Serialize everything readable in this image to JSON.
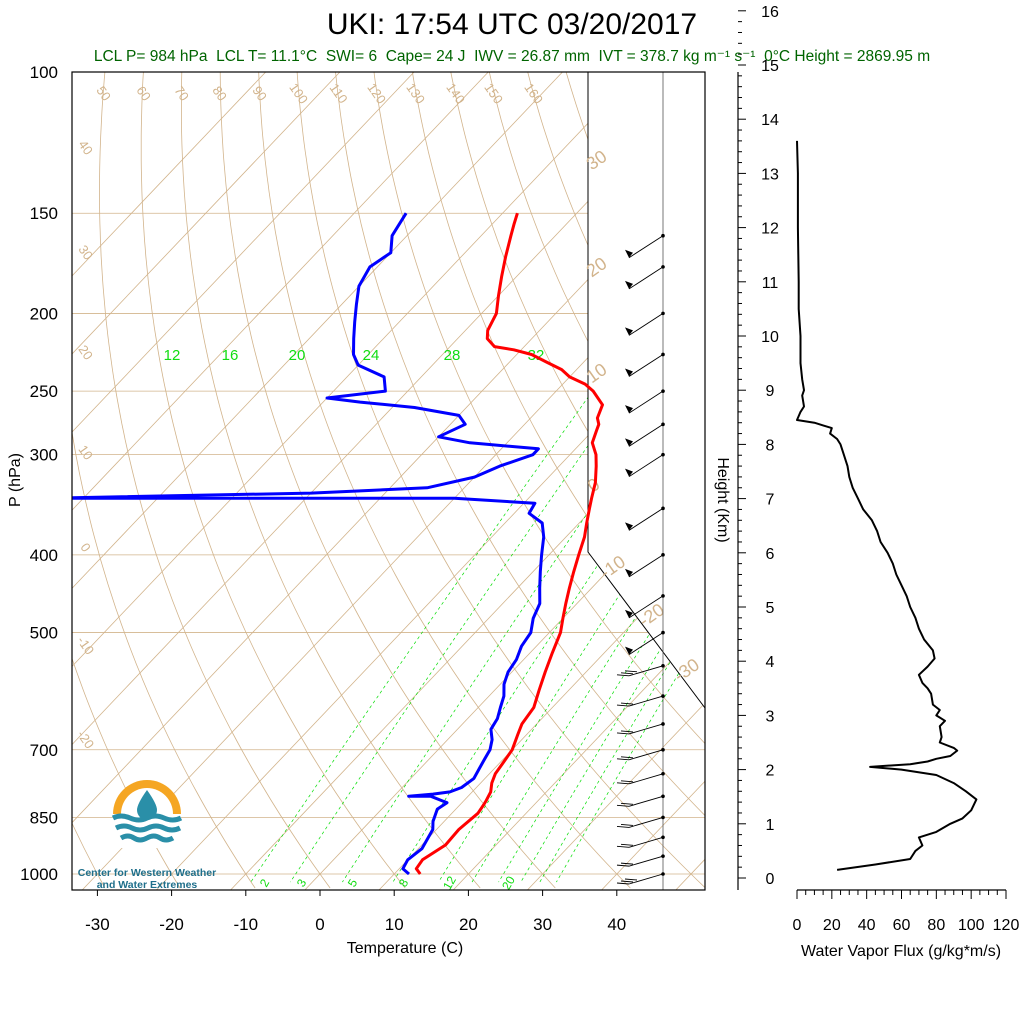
{
  "title": "UKI: 17:54 UTC 03/20/2017",
  "subtitle": {
    "lcl_p": "LCL P= 984 hPa",
    "lcl_t": "LCL T= 11.1°C",
    "swi": "SWI= 6",
    "cape": "Cape= 24 J",
    "iwv": "IWV = 26.87 mm",
    "ivt": "IVT = 378.7 kg m⁻¹ s⁻¹",
    "zero_height": "0°C Height = 2869.95 m"
  },
  "logo": {
    "line1": "Center for Western Weather",
    "line2": "and Water Extremes"
  },
  "colors": {
    "temperature": "#ff0000",
    "dewpoint": "#0000ff",
    "dry_adiabat": "#d2b48c",
    "mixing_ratio": "#00dd00",
    "subtitle": "#006400",
    "flux": "#000000"
  },
  "chart_data": [
    {
      "type": "line",
      "name": "skew-t",
      "xlabel": "Temperature (C)",
      "ylabel": "P (hPa)",
      "xlim": [
        -33,
        52
      ],
      "ylim": [
        1050,
        100
      ],
      "x_ticks": [
        "-30",
        "-20",
        "-10",
        "0",
        "10",
        "20",
        "30",
        "40"
      ],
      "y_ticks": [
        "100",
        "150",
        "200",
        "250",
        "300",
        "400",
        "500",
        "700",
        "850",
        "1000"
      ],
      "y_tick_values": [
        100,
        150,
        200,
        250,
        300,
        400,
        500,
        700,
        850,
        1000
      ],
      "isotherm_labels": [
        "50",
        "60",
        "70",
        "80",
        "90",
        "100",
        "110",
        "120",
        "130",
        "140",
        "150",
        "160"
      ],
      "theta_labels_left": [
        "40",
        "30",
        "20",
        "10",
        "0",
        "-10",
        "-20"
      ],
      "theta_labels_right": [
        "30",
        "20",
        "10",
        "0",
        "-10",
        "-20",
        "-30"
      ],
      "mixing_ratio_top": [
        "12",
        "16",
        "20",
        "24",
        "28",
        "32"
      ],
      "mixing_ratio_bottom": [
        "2",
        "3",
        "5",
        "8",
        "12",
        "20"
      ],
      "series": [
        {
          "name": "temperature",
          "points": [
            [
              13.5,
              1000
            ],
            [
              12.3,
              985
            ],
            [
              12,
              960
            ],
            [
              13.2,
              920
            ],
            [
              13,
              880
            ],
            [
              13.5,
              840
            ],
            [
              13.2,
              820
            ],
            [
              13,
              810
            ],
            [
              12.5,
              790
            ],
            [
              11.5,
              770
            ],
            [
              10.8,
              750
            ],
            [
              10.5,
              730
            ],
            [
              10,
              700
            ],
            [
              8.8,
              670
            ],
            [
              8,
              650
            ],
            [
              7.5,
              620
            ],
            [
              6,
              590
            ],
            [
              4.5,
              560
            ],
            [
              3,
              530
            ],
            [
              1.5,
              500
            ],
            [
              0,
              480
            ],
            [
              -1.5,
              460
            ],
            [
              -3,
              440
            ],
            [
              -4.5,
              420
            ],
            [
              -6,
              400
            ],
            [
              -7.5,
              380
            ],
            [
              -9,
              365
            ],
            [
              -10.5,
              350
            ],
            [
              -11.5,
              340
            ],
            [
              -13,
              325
            ],
            [
              -15,
              310
            ],
            [
              -16.5,
              300
            ],
            [
              -18.5,
              290
            ],
            [
              -19.5,
              280
            ],
            [
              -20,
              275
            ],
            [
              -21,
              270
            ],
            [
              -22,
              260
            ],
            [
              -25,
              250
            ],
            [
              -27,
              245
            ],
            [
              -30,
              240
            ],
            [
              -32,
              235
            ],
            [
              -35,
              230
            ],
            [
              -38,
              225
            ],
            [
              -41,
              222
            ],
            [
              -44,
              220
            ],
            [
              -46,
              215
            ],
            [
              -47,
              210
            ],
            [
              -48,
              200
            ],
            [
              -50,
              190
            ],
            [
              -52,
              180
            ],
            [
              -54,
              170
            ],
            [
              -56,
              160
            ],
            [
              -57,
              155
            ],
            [
              -58,
              150
            ]
          ]
        },
        {
          "name": "dewpoint",
          "points": [
            [
              12,
              1000
            ],
            [
              10.5,
              985
            ],
            [
              10,
              960
            ],
            [
              10.5,
              930
            ],
            [
              9.5,
              880
            ],
            [
              8.5,
              860
            ],
            [
              7.5,
              830
            ],
            [
              8,
              815
            ],
            [
              7,
              810
            ],
            [
              5,
              800
            ],
            [
              3,
              800
            ],
            [
              2,
              800
            ],
            [
              5,
              795
            ],
            [
              7,
              790
            ],
            [
              8,
              780
            ],
            [
              8.5,
              760
            ],
            [
              8,
              740
            ],
            [
              7.5,
              720
            ],
            [
              7,
              700
            ],
            [
              6,
              680
            ],
            [
              4.5,
              660
            ],
            [
              4,
              640
            ],
            [
              3,
              620
            ],
            [
              2,
              600
            ],
            [
              0.5,
              580
            ],
            [
              -0.5,
              560
            ],
            [
              -1,
              540
            ],
            [
              -2,
              520
            ],
            [
              -2.5,
              500
            ],
            [
              -4,
              480
            ],
            [
              -5,
              460
            ],
            [
              -7,
              440
            ],
            [
              -9,
              420
            ],
            [
              -11,
              400
            ],
            [
              -13,
              380
            ],
            [
              -15,
              365
            ],
            [
              -18,
              355
            ],
            [
              -18.5,
              345
            ],
            [
              -30,
              340
            ],
            [
              -50,
              340
            ],
            [
              -85,
              340
            ],
            [
              -50,
              335
            ],
            [
              -35,
              330
            ],
            [
              -30,
              320
            ],
            [
              -28,
              310
            ],
            [
              -25,
              300
            ],
            [
              -25,
              295
            ],
            [
              -35,
              290
            ],
            [
              -40,
              285
            ],
            [
              -38,
              275
            ],
            [
              -40,
              268
            ],
            [
              -47,
              262
            ],
            [
              -55,
              258
            ],
            [
              -60,
              255
            ],
            [
              -53,
              250
            ],
            [
              -55,
              240
            ],
            [
              -60,
              232
            ],
            [
              -62,
              225
            ],
            [
              -64,
              215
            ],
            [
              -66,
              205
            ],
            [
              -68,
              195
            ],
            [
              -70,
              185
            ],
            [
              -71,
              175
            ],
            [
              -70,
              168
            ],
            [
              -72,
              160
            ],
            [
              -73,
              150
            ]
          ]
        }
      ],
      "wind_barbs": [
        [
          1000,
          25
        ],
        [
          950,
          20
        ],
        [
          900,
          15
        ],
        [
          850,
          15
        ],
        [
          800,
          15
        ],
        [
          750,
          15
        ],
        [
          700,
          15
        ],
        [
          650,
          15
        ],
        [
          600,
          20
        ],
        [
          550,
          25
        ],
        [
          500,
          40
        ],
        [
          450,
          45
        ],
        [
          400,
          45
        ],
        [
          350,
          45
        ],
        [
          300,
          45
        ],
        [
          275,
          50
        ],
        [
          250,
          45
        ],
        [
          225,
          50
        ],
        [
          200,
          50
        ],
        [
          175,
          45
        ],
        [
          160,
          45
        ]
      ]
    },
    {
      "type": "line",
      "name": "water-vapor-flux",
      "xlabel": "Water Vapor Flux (g/kg*m/s)",
      "ylabel": "Height (Km)",
      "xlim": [
        0,
        120
      ],
      "ylim": [
        0,
        16.5
      ],
      "x_ticks": [
        "0",
        "20",
        "40",
        "60",
        "80",
        "100",
        "120"
      ],
      "y_ticks": [
        "0",
        "1",
        "2",
        "3",
        "4",
        "5",
        "6",
        "7",
        "8",
        "9",
        "10",
        "11",
        "12",
        "13",
        "14",
        "15",
        "16"
      ],
      "series": [
        {
          "name": "flux",
          "points": [
            [
              23,
              0.15
            ],
            [
              45,
              0.25
            ],
            [
              65,
              0.35
            ],
            [
              68,
              0.5
            ],
            [
              72,
              0.6
            ],
            [
              70,
              0.75
            ],
            [
              80,
              0.85
            ],
            [
              88,
              1.0
            ],
            [
              95,
              1.1
            ],
            [
              100,
              1.25
            ],
            [
              103,
              1.45
            ],
            [
              97,
              1.6
            ],
            [
              90,
              1.75
            ],
            [
              80,
              1.9
            ],
            [
              60,
              2.0
            ],
            [
              42,
              2.05
            ],
            [
              65,
              2.1
            ],
            [
              75,
              2.15
            ],
            [
              80,
              2.2
            ],
            [
              88,
              2.25
            ],
            [
              92,
              2.35
            ],
            [
              90,
              2.4
            ],
            [
              82,
              2.5
            ],
            [
              83,
              2.6
            ],
            [
              82,
              2.8
            ],
            [
              85,
              2.9
            ],
            [
              80,
              3.0
            ],
            [
              82,
              3.1
            ],
            [
              78,
              3.2
            ],
            [
              77,
              3.4
            ],
            [
              75,
              3.5
            ],
            [
              72,
              3.6
            ],
            [
              70,
              3.75
            ],
            [
              75,
              3.9
            ],
            [
              79,
              4.05
            ],
            [
              78,
              4.2
            ],
            [
              73,
              4.4
            ],
            [
              70,
              4.6
            ],
            [
              68,
              4.8
            ],
            [
              65,
              5.0
            ],
            [
              63,
              5.2
            ],
            [
              60,
              5.4
            ],
            [
              57,
              5.6
            ],
            [
              55,
              5.8
            ],
            [
              52,
              6.0
            ],
            [
              48,
              6.2
            ],
            [
              46,
              6.4
            ],
            [
              43,
              6.6
            ],
            [
              38,
              6.8
            ],
            [
              35,
              7.0
            ],
            [
              32,
              7.2
            ],
            [
              30,
              7.4
            ],
            [
              29,
              7.6
            ],
            [
              27,
              7.8
            ],
            [
              25,
              8.0
            ],
            [
              23,
              8.1
            ],
            [
              19,
              8.2
            ],
            [
              20,
              8.3
            ],
            [
              15,
              8.35
            ],
            [
              10,
              8.4
            ],
            [
              0,
              8.45
            ],
            [
              2,
              8.6
            ],
            [
              4,
              8.7
            ],
            [
              3,
              8.9
            ],
            [
              4,
              9.0
            ],
            [
              3,
              9.2
            ],
            [
              2,
              9.5
            ],
            [
              2,
              10
            ],
            [
              1,
              10.5
            ],
            [
              1,
              11
            ],
            [
              0.5,
              12
            ],
            [
              0.5,
              13
            ],
            [
              0,
              13.6
            ]
          ]
        }
      ]
    }
  ]
}
